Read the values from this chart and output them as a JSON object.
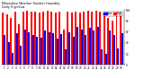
{
  "title": "Milwaukee Weather Outdoor Humidity",
  "subtitle": "Daily High/Low",
  "high_values": [
    95,
    93,
    85,
    98,
    75,
    98,
    99,
    98,
    98,
    96,
    98,
    99,
    98,
    96,
    98,
    65,
    98,
    95,
    98,
    96,
    98,
    99,
    98,
    99,
    98,
    95,
    85,
    80,
    90,
    98
  ],
  "low_values": [
    55,
    42,
    22,
    58,
    35,
    65,
    60,
    55,
    52,
    50,
    62,
    60,
    58,
    48,
    56,
    28,
    60,
    52,
    70,
    65,
    55,
    68,
    62,
    70,
    28,
    20,
    62,
    55,
    30,
    58
  ],
  "x_labels": [
    "1",
    "2",
    "3",
    "4",
    "5",
    "6",
    "7",
    "8",
    "9",
    "10",
    "11",
    "12",
    "13",
    "14",
    "15",
    "16",
    "17",
    "18",
    "19",
    "20",
    "21",
    "22",
    "23",
    "24",
    "25",
    "26",
    "27",
    "28",
    "29",
    "30"
  ],
  "color_high": "#FF0000",
  "color_low": "#0000FF",
  "bg_color": "#FFFFFF",
  "plot_bg": "#FFFFFF",
  "ylim": [
    0,
    100
  ],
  "legend_high": "High",
  "legend_low": "Low",
  "bar_width": 0.42,
  "dotted_vline_x": 23,
  "yticks": [
    0,
    20,
    40,
    60,
    80,
    100
  ],
  "ytick_labels": [
    "0",
    "20",
    "40",
    "60",
    "80",
    "100"
  ]
}
